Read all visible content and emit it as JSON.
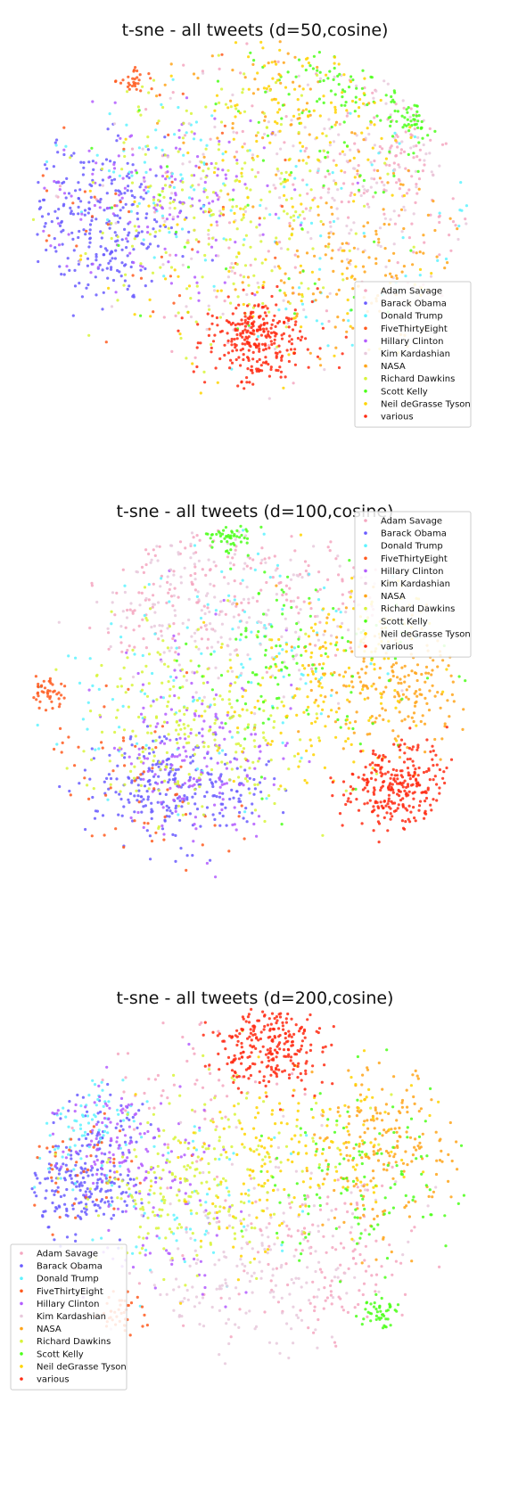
{
  "chart_data": [
    {
      "type": "scatter",
      "title": "t-sne - all tweets (d=50,cosine)",
      "xlabel": "",
      "ylabel": "",
      "axes": "off",
      "grid": false,
      "legend_placement": "lower right",
      "xlim": [
        -60,
        60
      ],
      "ylim": [
        -60,
        60
      ],
      "series": [
        {
          "name": "Adam Savage",
          "color": "#f4a6c0",
          "clusters": [
            {
              "x": 42,
              "y": 18,
              "spread": 13,
              "n": 140
            },
            {
              "x": 10,
              "y": 10,
              "spread": 30,
              "n": 120
            }
          ]
        },
        {
          "name": "Barack Obama",
          "color": "#6a5cff",
          "clusters": [
            {
              "x": -40,
              "y": 6,
              "spread": 10,
              "n": 190
            },
            {
              "x": -38,
              "y": -12,
              "spread": 8,
              "n": 80
            }
          ]
        },
        {
          "name": "Donald Trump",
          "color": "#5ef3ff",
          "clusters": [
            {
              "x": -25,
              "y": 20,
              "spread": 15,
              "n": 70
            },
            {
              "x": 30,
              "y": -5,
              "spread": 25,
              "n": 70
            }
          ]
        },
        {
          "name": "FiveThirtyEight",
          "color": "#ff5a1f",
          "clusters": [
            {
              "x": -32,
              "y": 47,
              "spread": 3,
              "n": 45
            },
            {
              "x": -30,
              "y": -5,
              "spread": 25,
              "n": 60
            }
          ]
        },
        {
          "name": "Hillary Clinton",
          "color": "#b35cff",
          "clusters": [
            {
              "x": -30,
              "y": 5,
              "spread": 14,
              "n": 110
            },
            {
              "x": -8,
              "y": 12,
              "spread": 14,
              "n": 50
            }
          ]
        },
        {
          "name": "Kim Kardashian",
          "color": "#e8c9dc",
          "clusters": [
            {
              "x": 30,
              "y": 20,
              "spread": 18,
              "n": 120
            },
            {
              "x": 5,
              "y": 5,
              "spread": 30,
              "n": 80
            }
          ]
        },
        {
          "name": "NASA",
          "color": "#ffa51a",
          "clusters": [
            {
              "x": 30,
              "y": -15,
              "spread": 14,
              "n": 140
            },
            {
              "x": 10,
              "y": 40,
              "spread": 14,
              "n": 80
            }
          ]
        },
        {
          "name": "Richard Dawkins",
          "color": "#d8f43a",
          "clusters": [
            {
              "x": -10,
              "y": 15,
              "spread": 18,
              "n": 150
            },
            {
              "x": 0,
              "y": -10,
              "spread": 18,
              "n": 90
            }
          ]
        },
        {
          "name": "Scott Kelly",
          "color": "#4cff1a",
          "clusters": [
            {
              "x": 45,
              "y": 33,
              "spread": 4,
              "n": 60
            },
            {
              "x": 25,
              "y": 44,
              "spread": 10,
              "n": 90
            },
            {
              "x": 10,
              "y": 10,
              "spread": 25,
              "n": 50
            }
          ]
        },
        {
          "name": "Neil deGrasse Tyson",
          "color": "#ffd400",
          "clusters": [
            {
              "x": 15,
              "y": 40,
              "spread": 14,
              "n": 100
            },
            {
              "x": 5,
              "y": -5,
              "spread": 25,
              "n": 110
            }
          ]
        },
        {
          "name": "various",
          "color": "#ff2a12",
          "clusters": [
            {
              "x": 2,
              "y": -37,
              "spread": 7,
              "n": 280
            }
          ]
        }
      ]
    },
    {
      "type": "scatter",
      "title": "t-sne - all tweets (d=100,cosine)",
      "xlabel": "",
      "ylabel": "",
      "axes": "off",
      "grid": false,
      "legend_placement": "upper right",
      "xlim": [
        -60,
        60
      ],
      "ylim": [
        -60,
        60
      ],
      "series": [
        {
          "name": "Adam Savage",
          "color": "#f4a6c0",
          "clusters": [
            {
              "x": -20,
              "y": 38,
              "spread": 12,
              "n": 140
            },
            {
              "x": 15,
              "y": 40,
              "spread": 12,
              "n": 80
            }
          ]
        },
        {
          "name": "Barack Obama",
          "color": "#6a5cff",
          "clusters": [
            {
              "x": -25,
              "y": -25,
              "spread": 9,
              "n": 200
            },
            {
              "x": -5,
              "y": -28,
              "spread": 6,
              "n": 60
            }
          ]
        },
        {
          "name": "Donald Trump",
          "color": "#5ef3ff",
          "clusters": [
            {
              "x": -20,
              "y": 10,
              "spread": 20,
              "n": 90
            },
            {
              "x": 10,
              "y": 25,
              "spread": 18,
              "n": 50
            }
          ]
        },
        {
          "name": "FiveThirtyEight",
          "color": "#ff5a1f",
          "clusters": [
            {
              "x": -55,
              "y": 5,
              "spread": 3,
              "n": 45
            },
            {
              "x": -30,
              "y": -25,
              "spread": 15,
              "n": 70
            }
          ]
        },
        {
          "name": "Hillary Clinton",
          "color": "#b35cff",
          "clusters": [
            {
              "x": -15,
              "y": -20,
              "spread": 12,
              "n": 130
            },
            {
              "x": -15,
              "y": 5,
              "spread": 15,
              "n": 50
            }
          ]
        },
        {
          "name": "Kim Kardashian",
          "color": "#e8c9dc",
          "clusters": [
            {
              "x": -15,
              "y": 35,
              "spread": 14,
              "n": 140
            },
            {
              "x": 15,
              "y": 35,
              "spread": 14,
              "n": 60
            }
          ]
        },
        {
          "name": "NASA",
          "color": "#ffa51a",
          "clusters": [
            {
              "x": 42,
              "y": 5,
              "spread": 10,
              "n": 140
            },
            {
              "x": 30,
              "y": 15,
              "spread": 15,
              "n": 70
            }
          ]
        },
        {
          "name": "Richard Dawkins",
          "color": "#d8f43a",
          "clusters": [
            {
              "x": -20,
              "y": 0,
              "spread": 15,
              "n": 160
            },
            {
              "x": -5,
              "y": -10,
              "spread": 12,
              "n": 80
            }
          ]
        },
        {
          "name": "Scott Kelly",
          "color": "#4cff1a",
          "clusters": [
            {
              "x": -5,
              "y": 55,
              "spread": 3,
              "n": 50
            },
            {
              "x": 15,
              "y": 15,
              "spread": 15,
              "n": 120
            }
          ]
        },
        {
          "name": "Neil deGrasse Tyson",
          "color": "#ffd400",
          "clusters": [
            {
              "x": 20,
              "y": 5,
              "spread": 15,
              "n": 120
            },
            {
              "x": 30,
              "y": 25,
              "spread": 12,
              "n": 60
            }
          ]
        },
        {
          "name": "various",
          "color": "#ff2a12",
          "clusters": [
            {
              "x": 40,
              "y": -25,
              "spread": 7,
              "n": 280
            }
          ]
        }
      ]
    },
    {
      "type": "scatter",
      "title": "t-sne - all tweets (d=200,cosine)",
      "xlabel": "",
      "ylabel": "",
      "axes": "off",
      "grid": false,
      "legend_placement": "lower left",
      "xlim": [
        -60,
        60
      ],
      "ylim": [
        -60,
        60
      ],
      "series": [
        {
          "name": "Adam Savage",
          "color": "#f4a6c0",
          "clusters": [
            {
              "x": 20,
              "y": -25,
              "spread": 14,
              "n": 140
            },
            {
              "x": -20,
              "y": 30,
              "spread": 12,
              "n": 60
            }
          ]
        },
        {
          "name": "Barack Obama",
          "color": "#6a5cff",
          "clusters": [
            {
              "x": -45,
              "y": 0,
              "spread": 8,
              "n": 200
            },
            {
              "x": -40,
              "y": 20,
              "spread": 7,
              "n": 60
            }
          ]
        },
        {
          "name": "Donald Trump",
          "color": "#5ef3ff",
          "clusters": [
            {
              "x": -45,
              "y": 18,
              "spread": 8,
              "n": 80
            },
            {
              "x": -15,
              "y": -5,
              "spread": 15,
              "n": 60
            }
          ]
        },
        {
          "name": "FiveThirtyEight",
          "color": "#ff5a1f",
          "clusters": [
            {
              "x": -35,
              "y": -40,
              "spread": 4,
              "n": 45
            },
            {
              "x": -50,
              "y": 5,
              "spread": 10,
              "n": 60
            }
          ]
        },
        {
          "name": "Hillary Clinton",
          "color": "#b35cff",
          "clusters": [
            {
              "x": -35,
              "y": 15,
              "spread": 10,
              "n": 130
            },
            {
              "x": -20,
              "y": -15,
              "spread": 12,
              "n": 50
            }
          ]
        },
        {
          "name": "Kim Kardashian",
          "color": "#e8c9dc",
          "clusters": [
            {
              "x": 0,
              "y": -30,
              "spread": 15,
              "n": 140
            },
            {
              "x": 10,
              "y": -10,
              "spread": 18,
              "n": 60
            }
          ]
        },
        {
          "name": "NASA",
          "color": "#ffa51a",
          "clusters": [
            {
              "x": 38,
              "y": 20,
              "spread": 10,
              "n": 140
            },
            {
              "x": 35,
              "y": 0,
              "spread": 12,
              "n": 60
            }
          ]
        },
        {
          "name": "Richard Dawkins",
          "color": "#d8f43a",
          "clusters": [
            {
              "x": -20,
              "y": 0,
              "spread": 12,
              "n": 150
            },
            {
              "x": 0,
              "y": 15,
              "spread": 15,
              "n": 80
            }
          ]
        },
        {
          "name": "Scott Kelly",
          "color": "#4cff1a",
          "clusters": [
            {
              "x": 35,
              "y": -40,
              "spread": 3,
              "n": 50
            },
            {
              "x": 30,
              "y": 5,
              "spread": 15,
              "n": 120
            }
          ]
        },
        {
          "name": "Neil deGrasse Tyson",
          "color": "#ffd400",
          "clusters": [
            {
              "x": 5,
              "y": 5,
              "spread": 15,
              "n": 120
            },
            {
              "x": 25,
              "y": 15,
              "spread": 15,
              "n": 60
            }
          ]
        },
        {
          "name": "various",
          "color": "#ff2a12",
          "clusters": [
            {
              "x": 5,
              "y": 45,
              "spread": 7,
              "n": 260
            }
          ]
        }
      ]
    }
  ]
}
